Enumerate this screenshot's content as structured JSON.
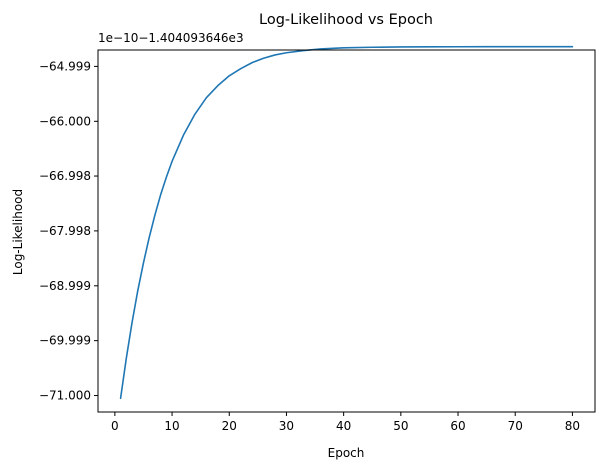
{
  "chart_data": {
    "type": "line",
    "title": "Log-Likelihood vs Epoch",
    "xlabel": "Epoch",
    "ylabel": "Log-Likelihood",
    "offset_label": "1e−10−1.404093646e3",
    "xlim": [
      -2.95,
      83.95
    ],
    "ylim": [
      -71.3,
      -64.7
    ],
    "grid": false,
    "legend": "none",
    "x_ticks": [
      {
        "value": 0,
        "label": "0"
      },
      {
        "value": 10,
        "label": "10"
      },
      {
        "value": 20,
        "label": "20"
      },
      {
        "value": 30,
        "label": "30"
      },
      {
        "value": 40,
        "label": "40"
      },
      {
        "value": 50,
        "label": "50"
      },
      {
        "value": 60,
        "label": "60"
      },
      {
        "value": 70,
        "label": "70"
      },
      {
        "value": 80,
        "label": "80"
      }
    ],
    "y_ticks": [
      {
        "value": -64.999,
        "label": "−64.999"
      },
      {
        "value": -66.0,
        "label": "−66.000"
      },
      {
        "value": -66.998,
        "label": "−66.998"
      },
      {
        "value": -67.998,
        "label": "−67.998"
      },
      {
        "value": -68.999,
        "label": "−68.999"
      },
      {
        "value": -69.999,
        "label": "−69.999"
      },
      {
        "value": -71.0,
        "label": "−71.000"
      }
    ],
    "series": [
      {
        "color": "#1f77b4",
        "x": [
          1,
          2,
          3,
          4,
          5,
          6,
          7,
          8,
          9,
          10,
          12,
          14,
          16,
          18,
          20,
          22,
          24,
          26,
          28,
          30,
          33,
          36,
          40,
          45,
          50,
          55,
          60,
          65,
          70,
          75,
          80
        ],
        "y": [
          -71.05,
          -70.32,
          -69.67,
          -69.09,
          -68.58,
          -68.12,
          -67.71,
          -67.34,
          -67.02,
          -66.73,
          -66.25,
          -65.87,
          -65.57,
          -65.35,
          -65.17,
          -65.04,
          -64.93,
          -64.85,
          -64.79,
          -64.75,
          -64.71,
          -64.68,
          -64.66,
          -64.65,
          -64.645,
          -64.642,
          -64.641,
          -64.64,
          -64.64,
          -64.64,
          -64.64
        ]
      }
    ]
  }
}
